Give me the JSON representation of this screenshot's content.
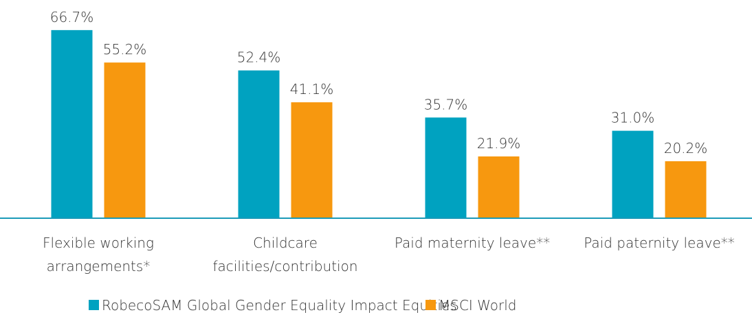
{
  "chart_data": {
    "type": "bar",
    "categories": [
      "Flexible working arrangements*",
      "Childcare facilities/contribution",
      "Paid maternity leave**",
      "Paid paternity leave**"
    ],
    "series": [
      {
        "name": "RobecoSAM Global Gender Equality Impact Equities",
        "color": "#00a2c0",
        "values": [
          66.7,
          52.4,
          35.7,
          31.0
        ],
        "value_labels": [
          "66.7%",
          "52.4%",
          "35.7%",
          "31.0%"
        ]
      },
      {
        "name": "MSCI World",
        "color": "#f7980f",
        "values": [
          55.2,
          41.1,
          21.9,
          20.2
        ],
        "value_labels": [
          "55.2%",
          "41.1%",
          "21.9%",
          "20.2%"
        ]
      }
    ],
    "legend": "bottom"
  }
}
